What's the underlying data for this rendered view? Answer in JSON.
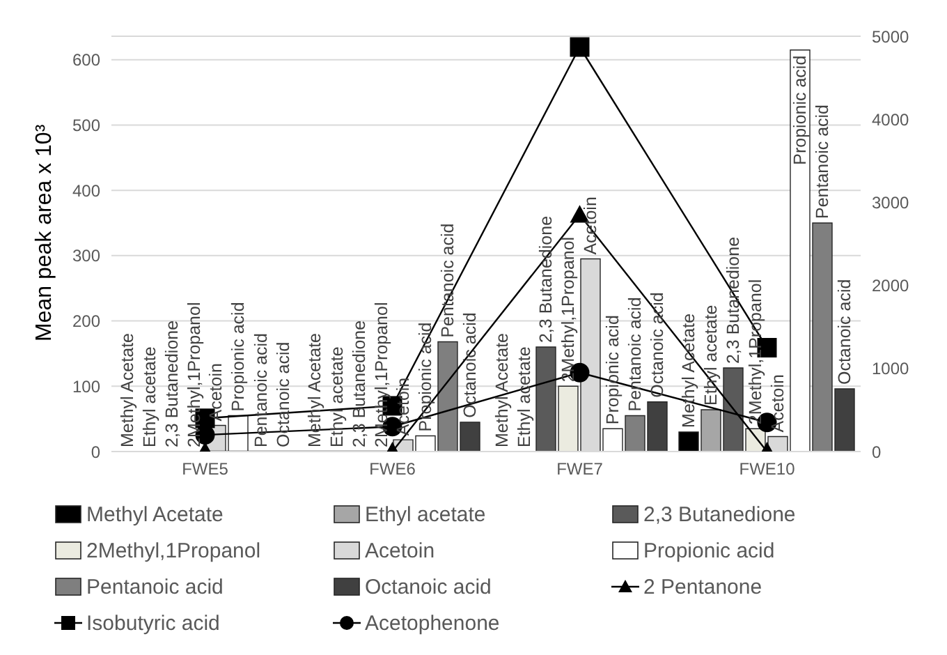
{
  "chart_data": {
    "type": "bar",
    "ylabel": "Mean peak area x 10³",
    "categories": [
      "FWE5",
      "FWE6",
      "FWE7",
      "FWE10"
    ],
    "series": [
      {
        "name": "Methyl Acetate",
        "color": "#000000",
        "values": [
          0,
          0,
          0,
          30
        ]
      },
      {
        "name": "Ethyl acetate",
        "color": "#a6a6a6",
        "values": [
          0,
          0,
          0,
          64
        ]
      },
      {
        "name": "2,3 Butanedione",
        "color": "#5a5a5a",
        "values": [
          0,
          0,
          160,
          128
        ]
      },
      {
        "name": "2Methyl,1Propanol",
        "color": "#ebebe0",
        "values": [
          0,
          0,
          100,
          35
        ]
      },
      {
        "name": "Acetoin",
        "color": "#d9d9d9",
        "values": [
          40,
          18,
          295,
          23
        ]
      },
      {
        "name": "Propionic acid",
        "color": "#ffffff",
        "values": [
          55,
          24,
          35,
          615
        ]
      },
      {
        "name": "Pentanoic acid",
        "color": "#7f7f7f",
        "values": [
          0,
          168,
          55,
          350
        ]
      },
      {
        "name": "Octanoic acid",
        "color": "#404040",
        "values": [
          0,
          45,
          76,
          96
        ]
      },
      {
        "name": "2 Pentanone",
        "type": "line",
        "axis": "y2",
        "marker": "triangle",
        "color": "#000000",
        "values": [
          0,
          0,
          2850,
          0
        ]
      },
      {
        "name": "Isobutyric acid",
        "type": "line",
        "axis": "y2",
        "marker": "square",
        "color": "#000000",
        "values": [
          400,
          550,
          4870,
          1250
        ]
      },
      {
        "name": "Acetophenone",
        "type": "line",
        "axis": "y2",
        "marker": "circle",
        "color": "#000000",
        "values": [
          200,
          300,
          950,
          350
        ]
      }
    ],
    "annotations": [
      "Methyl Acetate",
      "Ethyl acetate",
      "2,3 Butanedione",
      "2Methyl,1Propanol",
      "Acetoin",
      "Propionic acid",
      "Pentanoic acid",
      "Octanoic acid",
      "Methyl Acetate",
      "Ethyl acetate",
      "2,3 Butanedione",
      "2Methyl,1Propanol",
      "Acetoin",
      "Propionic acid",
      "Pentanoic acid",
      "Octanoic acid",
      "Methyl Acetate",
      "Ethyl acetate",
      "2,3 Butanedione",
      "2Methyl,1Propanol",
      "Acetoin",
      "Propionic acid",
      "Pentanoic acid",
      "Octanoic acid",
      "Methyl Acetate",
      "Ethyl acetate",
      "2,3 Butanedione",
      "2Methyl,1Propanol",
      "Acetoin",
      "Propionic acid",
      "Pentanoic acid",
      "Octanoic acid"
    ],
    "ylim": [
      0,
      636
    ],
    "yticks": [
      0,
      100,
      200,
      300,
      400,
      500,
      600
    ],
    "y2lim": [
      0,
      5000
    ],
    "y2ticks": [
      0,
      1000,
      2000,
      3000,
      4000,
      5000
    ],
    "grid": "y",
    "legend": "bottom"
  }
}
